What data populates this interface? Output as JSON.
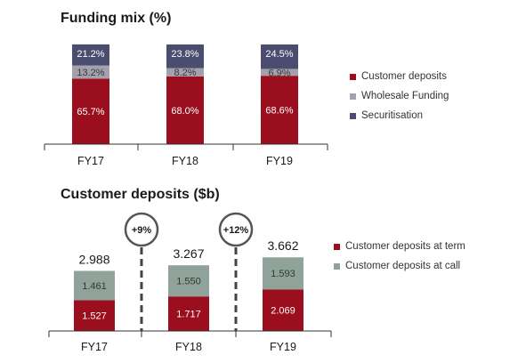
{
  "chart_data": [
    {
      "type": "bar",
      "stacked": true,
      "title": "Funding mix (%)",
      "categories": [
        "FY17",
        "FY18",
        "FY19"
      ],
      "series": [
        {
          "name": "Customer deposits",
          "values": [
            65.7,
            68.0,
            68.6
          ],
          "labels": [
            "65.7%",
            "68.0%",
            "68.6%"
          ],
          "color": "#9b0e1e"
        },
        {
          "name": "Wholesale Funding",
          "values": [
            13.2,
            8.2,
            6.9
          ],
          "labels": [
            "13.2%",
            "8.2%",
            "6.9%"
          ],
          "color": "#a3a1ac"
        },
        {
          "name": "Securitisation",
          "values": [
            21.2,
            23.8,
            24.5
          ],
          "labels": [
            "21.2%",
            "23.8%",
            "24.5%"
          ],
          "color": "#4a4d70"
        }
      ],
      "ylim": [
        0,
        100
      ],
      "legend": "right",
      "grid": false
    },
    {
      "type": "bar",
      "stacked": true,
      "title": "Customer deposits ($b)",
      "categories": [
        "FY17",
        "FY18",
        "FY19"
      ],
      "series": [
        {
          "name": "Customer deposits at term",
          "values": [
            1.527,
            1.717,
            2.069
          ],
          "labels": [
            "1.527",
            "1.717",
            "2.069"
          ],
          "color": "#9b0e1e"
        },
        {
          "name": "Customer deposits at call",
          "values": [
            1.461,
            1.55,
            1.593
          ],
          "labels": [
            "1.461",
            "1.550",
            "1.593"
          ],
          "color": "#8fa39a"
        }
      ],
      "totals": [
        "2.988",
        "3.267",
        "3.662"
      ],
      "annotations": [
        "+9%",
        "+12%"
      ],
      "legend": "right",
      "grid": false
    }
  ]
}
